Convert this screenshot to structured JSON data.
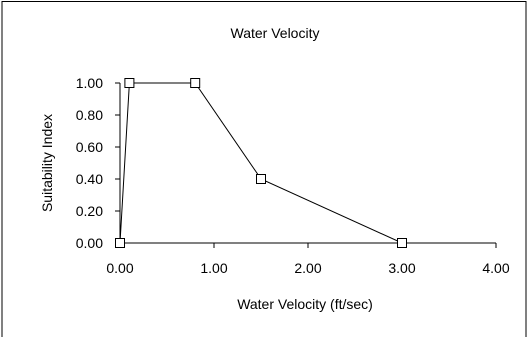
{
  "chart_data": {
    "type": "line",
    "title": "Water Velocity",
    "xlabel": "Water Velocity (ft/sec)",
    "ylabel": "Suitability Index",
    "xlim": [
      0,
      4
    ],
    "ylim": [
      0,
      1
    ],
    "x_ticks": [
      "0.00",
      "1.00",
      "2.00",
      "3.00",
      "4.00"
    ],
    "y_ticks": [
      "0.00",
      "0.20",
      "0.40",
      "0.60",
      "0.80",
      "1.00"
    ],
    "grid": false,
    "legend": "none",
    "series": [
      {
        "x": [
          0.0,
          0.1,
          0.8,
          1.5,
          3.0,
          4.0
        ],
        "y": [
          0.0,
          1.0,
          1.0,
          0.4,
          0.0,
          0.0
        ],
        "markers": [
          true,
          true,
          true,
          true,
          true,
          false
        ]
      }
    ],
    "colors": {
      "line": "#000000",
      "marker_fill": "#ffffff",
      "frame": "#000000"
    }
  }
}
